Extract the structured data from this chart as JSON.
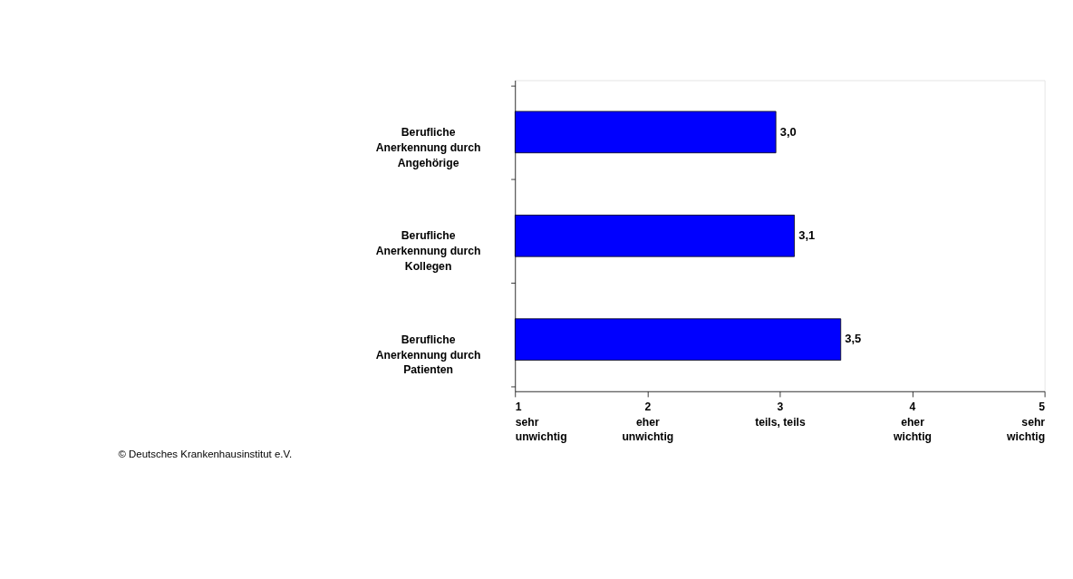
{
  "chart_data": {
    "type": "bar",
    "orientation": "horizontal",
    "categories": [
      "Berufliche Anerkennung durch Angehörige",
      "Berufliche Anerkennung durch Kollegen",
      "Berufliche Anerkennung durch Patienten"
    ],
    "values": [
      2.97,
      3.11,
      3.46
    ],
    "value_labels": [
      "3,0",
      "3,1",
      "3,5"
    ],
    "color": "#0000ff",
    "xlim": [
      1,
      5
    ],
    "xticks": [
      {
        "value": 1,
        "label": "1\nsehr\nunwichtig"
      },
      {
        "value": 2,
        "label": "2\neher\nunwichtig"
      },
      {
        "value": 3,
        "label": "3\nteils, teils"
      },
      {
        "value": 4,
        "label": "4\neher\nwichtig"
      },
      {
        "value": 5,
        "label": "5\nsehr\nwichtig"
      }
    ],
    "grid": false,
    "annotations": [
      "© Deutsches Krankenhausinstitut e.V."
    ]
  }
}
